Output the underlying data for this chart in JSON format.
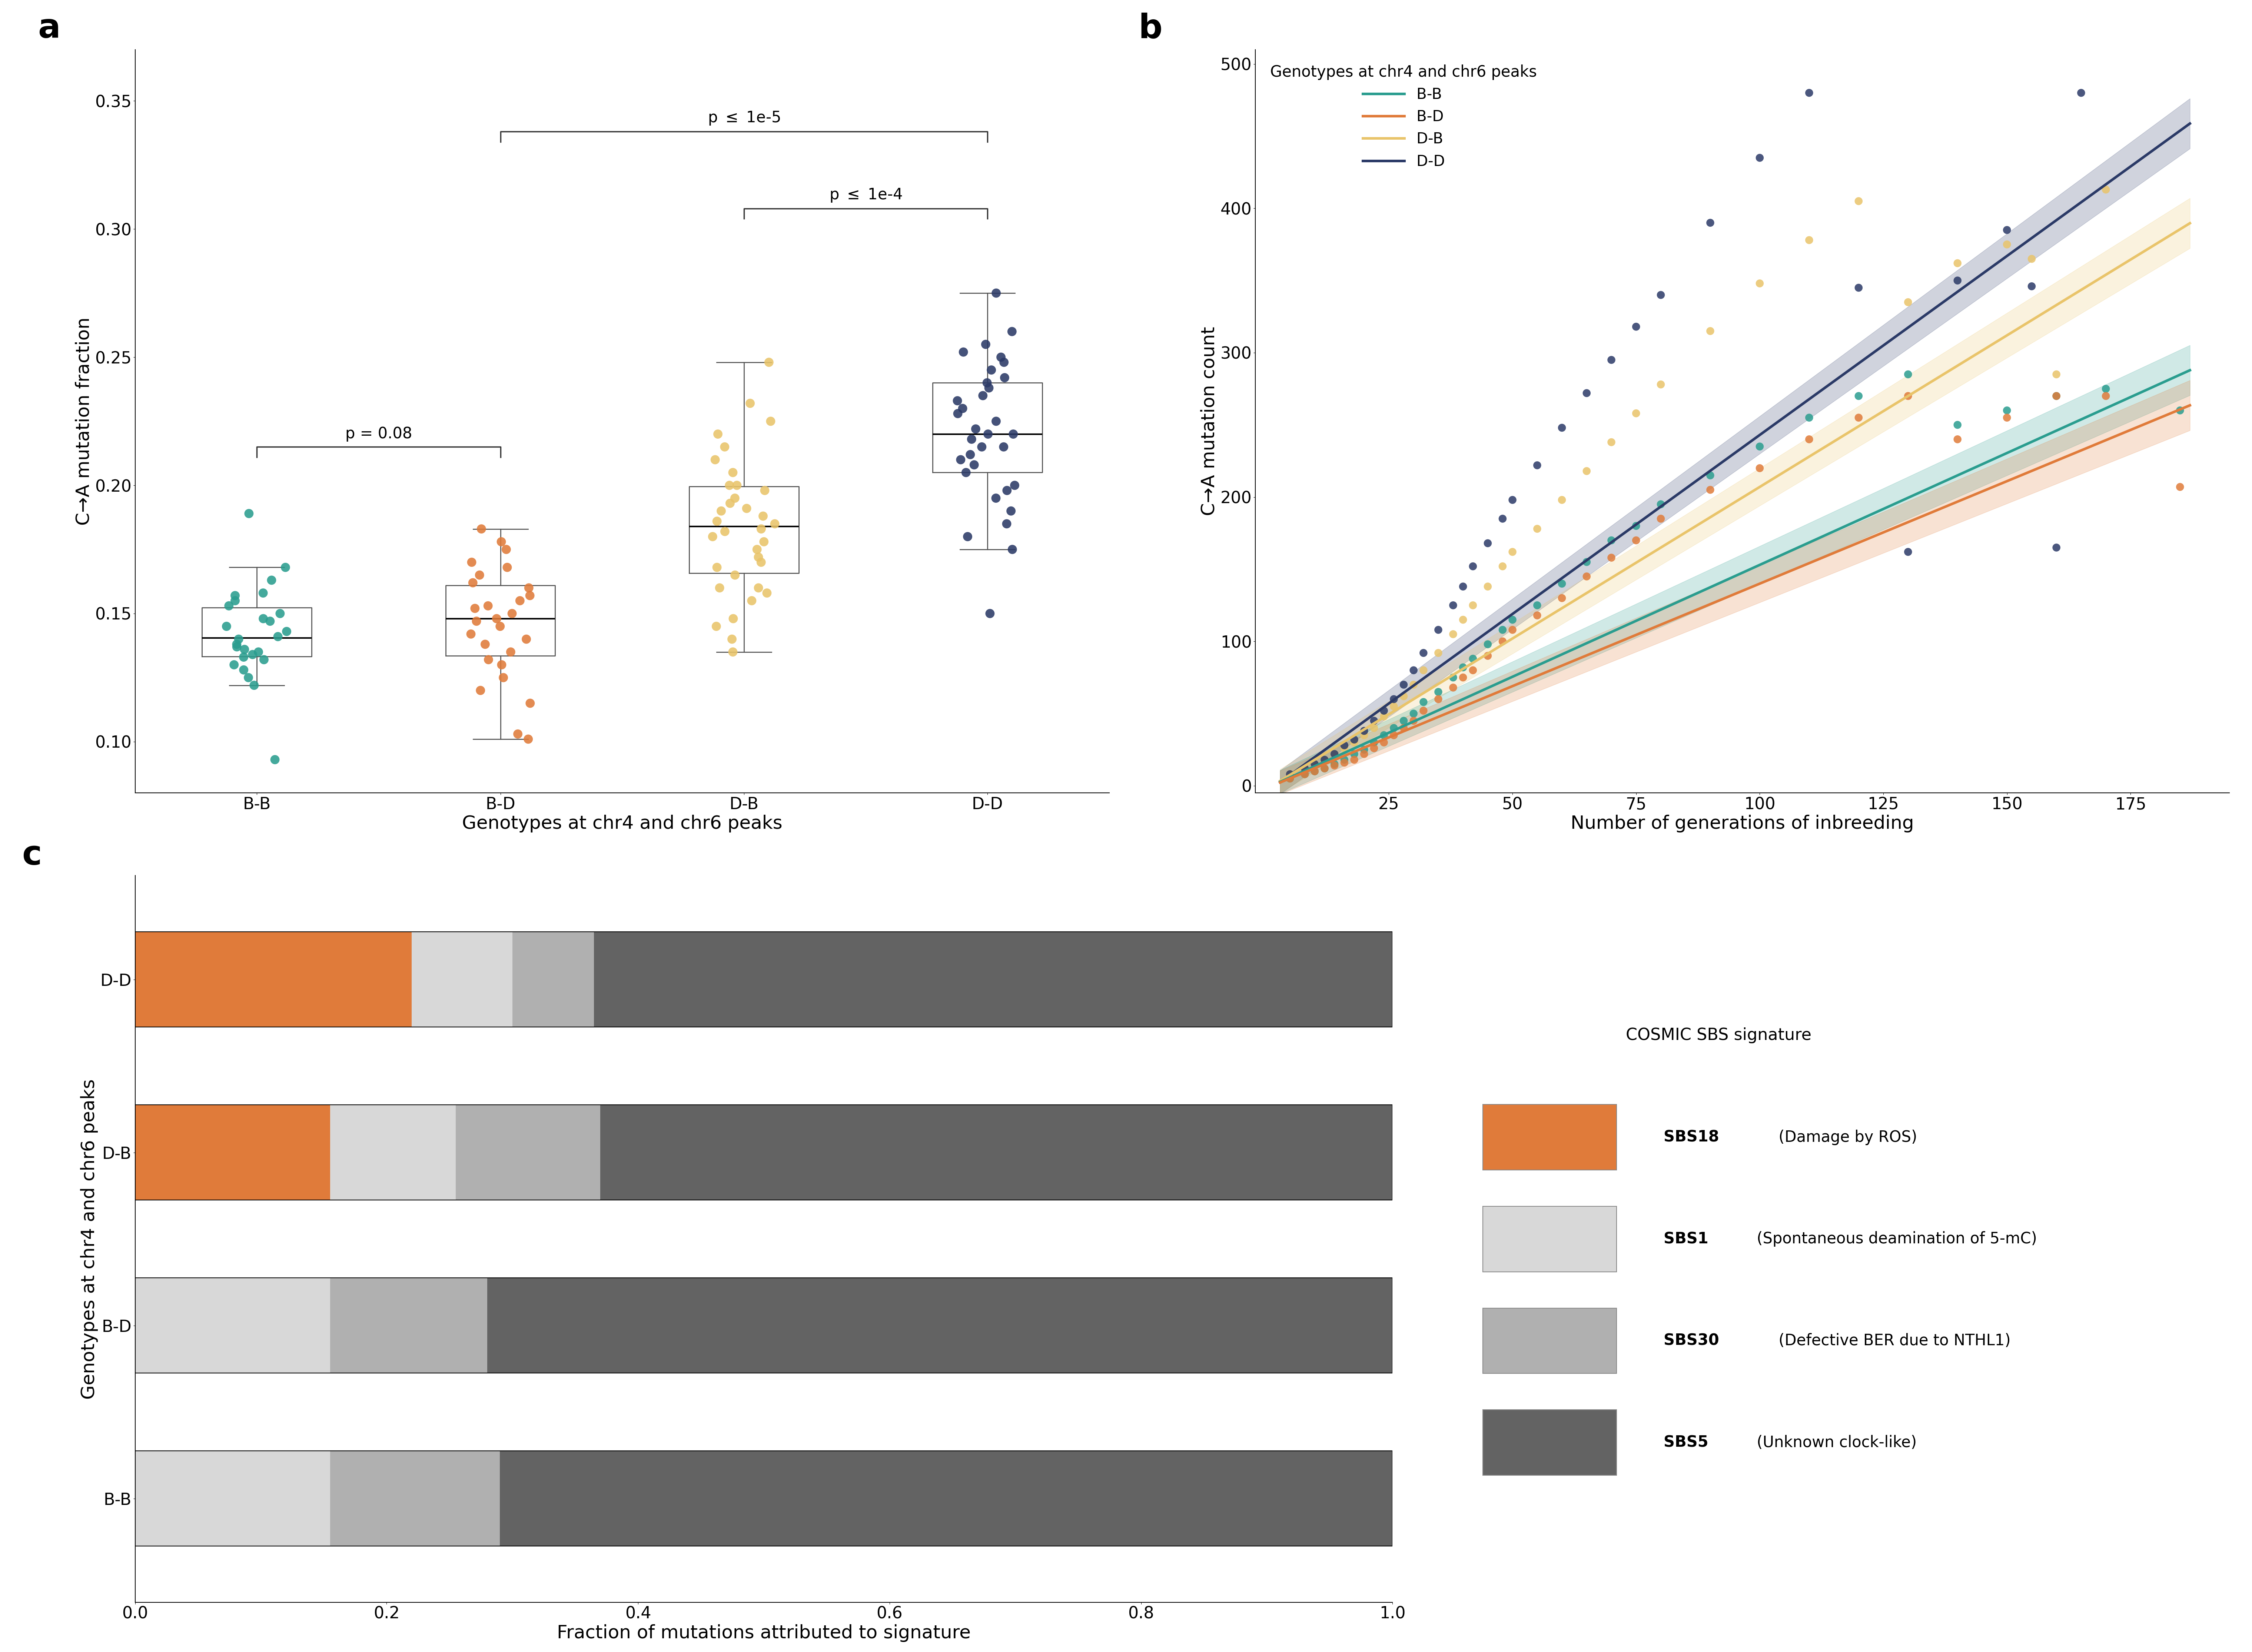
{
  "panel_a": {
    "groups": [
      "B-B",
      "B-D",
      "D-B",
      "D-D"
    ],
    "colors": [
      "#2a9d8f",
      "#e07b3a",
      "#e9c46a",
      "#2b3a67"
    ],
    "BB_data": [
      0.189,
      0.168,
      0.163,
      0.158,
      0.157,
      0.155,
      0.153,
      0.15,
      0.148,
      0.147,
      0.145,
      0.143,
      0.141,
      0.14,
      0.138,
      0.137,
      0.136,
      0.135,
      0.134,
      0.133,
      0.132,
      0.13,
      0.128,
      0.125,
      0.122,
      0.093
    ],
    "BD_data": [
      0.183,
      0.178,
      0.175,
      0.17,
      0.168,
      0.165,
      0.162,
      0.16,
      0.157,
      0.155,
      0.153,
      0.152,
      0.15,
      0.148,
      0.147,
      0.145,
      0.142,
      0.14,
      0.138,
      0.135,
      0.132,
      0.13,
      0.125,
      0.12,
      0.115,
      0.103,
      0.101
    ],
    "DB_data": [
      0.248,
      0.232,
      0.225,
      0.22,
      0.215,
      0.21,
      0.205,
      0.2,
      0.2,
      0.198,
      0.195,
      0.193,
      0.191,
      0.19,
      0.188,
      0.186,
      0.185,
      0.183,
      0.182,
      0.18,
      0.178,
      0.175,
      0.172,
      0.17,
      0.168,
      0.165,
      0.16,
      0.158,
      0.155,
      0.148,
      0.145,
      0.14,
      0.135,
      0.16
    ],
    "DD_data": [
      0.275,
      0.26,
      0.255,
      0.252,
      0.25,
      0.248,
      0.245,
      0.242,
      0.24,
      0.238,
      0.235,
      0.233,
      0.23,
      0.228,
      0.225,
      0.222,
      0.22,
      0.22,
      0.218,
      0.215,
      0.215,
      0.212,
      0.21,
      0.208,
      0.205,
      0.2,
      0.198,
      0.195,
      0.19,
      0.185,
      0.18,
      0.175,
      0.15
    ],
    "ylabel": "C→A mutation fraction",
    "xlabel": "Genotypes at chr4 and chr6 peaks",
    "ylim": [
      0.08,
      0.37
    ],
    "yticks": [
      0.1,
      0.15,
      0.2,
      0.25,
      0.3,
      0.35
    ]
  },
  "panel_b": {
    "colors": {
      "BB": "#2a9d8f",
      "BD": "#e07b3a",
      "DB": "#e9c46a",
      "DD": "#2b3a67"
    },
    "xlabel": "Number of generations of inbreeding",
    "ylabel": "C→A mutation count",
    "ylim": [
      -5,
      510
    ],
    "xlim": [
      -2,
      195
    ],
    "xticks": [
      25,
      50,
      75,
      100,
      125,
      150,
      175
    ],
    "yticks": [
      0,
      100,
      200,
      300,
      400,
      500
    ],
    "legend_title": "Genotypes at chr4 and chr6 peaks",
    "legend_labels": [
      "B-B",
      "B-D",
      "D-B",
      "D-D"
    ],
    "BB_x": [
      5,
      8,
      10,
      12,
      14,
      16,
      18,
      20,
      22,
      24,
      26,
      28,
      30,
      32,
      35,
      38,
      40,
      42,
      45,
      48,
      50,
      55,
      60,
      65,
      70,
      75,
      80,
      90,
      100,
      110,
      120,
      130,
      140,
      150,
      160,
      170,
      185
    ],
    "BB_y": [
      5,
      8,
      10,
      12,
      15,
      18,
      22,
      25,
      30,
      35,
      40,
      45,
      50,
      58,
      65,
      75,
      82,
      88,
      98,
      108,
      115,
      125,
      140,
      155,
      170,
      180,
      195,
      215,
      235,
      255,
      270,
      285,
      250,
      260,
      270,
      275,
      260
    ],
    "BD_x": [
      5,
      8,
      10,
      12,
      14,
      16,
      18,
      20,
      22,
      24,
      26,
      28,
      30,
      32,
      35,
      38,
      40,
      42,
      45,
      48,
      50,
      55,
      60,
      65,
      70,
      75,
      80,
      90,
      100,
      110,
      120,
      130,
      140,
      150,
      160,
      170,
      185
    ],
    "BD_y": [
      5,
      8,
      10,
      12,
      14,
      16,
      18,
      22,
      26,
      30,
      35,
      40,
      45,
      52,
      60,
      68,
      75,
      80,
      90,
      100,
      108,
      118,
      130,
      145,
      158,
      170,
      185,
      205,
      220,
      240,
      255,
      270,
      240,
      255,
      270,
      270,
      207
    ],
    "DB_x": [
      5,
      8,
      10,
      12,
      14,
      16,
      18,
      20,
      22,
      24,
      26,
      28,
      30,
      32,
      35,
      38,
      40,
      42,
      45,
      48,
      50,
      55,
      60,
      65,
      70,
      75,
      80,
      90,
      100,
      110,
      120,
      130,
      140,
      150,
      155,
      160,
      170
    ],
    "DB_y": [
      8,
      12,
      15,
      18,
      22,
      26,
      30,
      35,
      40,
      48,
      55,
      62,
      70,
      80,
      92,
      105,
      115,
      125,
      138,
      152,
      162,
      178,
      198,
      218,
      238,
      258,
      278,
      315,
      348,
      378,
      405,
      335,
      362,
      375,
      365,
      285,
      413
    ],
    "DD_x": [
      5,
      8,
      10,
      12,
      14,
      16,
      18,
      20,
      22,
      24,
      26,
      28,
      30,
      32,
      35,
      38,
      40,
      42,
      45,
      48,
      50,
      55,
      60,
      65,
      70,
      75,
      80,
      90,
      100,
      110,
      120,
      130,
      140,
      150,
      155,
      160,
      165
    ],
    "DD_y": [
      8,
      12,
      15,
      18,
      22,
      28,
      32,
      38,
      45,
      52,
      60,
      70,
      80,
      92,
      108,
      125,
      138,
      152,
      168,
      185,
      198,
      222,
      248,
      272,
      295,
      318,
      340,
      390,
      435,
      480,
      345,
      162,
      350,
      385,
      346,
      165,
      480
    ]
  },
  "panel_c": {
    "groups": [
      "B-B",
      "B-D",
      "D-B",
      "D-D"
    ],
    "SBS18": [
      0.0,
      0.0,
      0.155,
      0.22
    ],
    "SBS1": [
      0.155,
      0.155,
      0.1,
      0.08
    ],
    "SBS30": [
      0.135,
      0.125,
      0.115,
      0.065
    ],
    "SBS5": [
      0.71,
      0.72,
      0.63,
      0.635
    ],
    "colors": {
      "SBS18": "#e07b3a",
      "SBS1": "#d8d8d8",
      "SBS30": "#b0b0b0",
      "SBS5": "#636363"
    },
    "xlabel": "Fraction of mutations attributed to signature",
    "ylabel": "Genotypes at chr4 and chr6 peaks",
    "legend_title": "COSMIC SBS signature",
    "legend_labels": {
      "SBS18": "SBS18 (Damage by ROS)",
      "SBS1": "SBS1 (Spontaneous deamination of 5-mC)",
      "SBS30": "SBS30 (Defective BER due to NTHL1)",
      "SBS5": "SBS5 (Unknown clock-like)"
    }
  }
}
